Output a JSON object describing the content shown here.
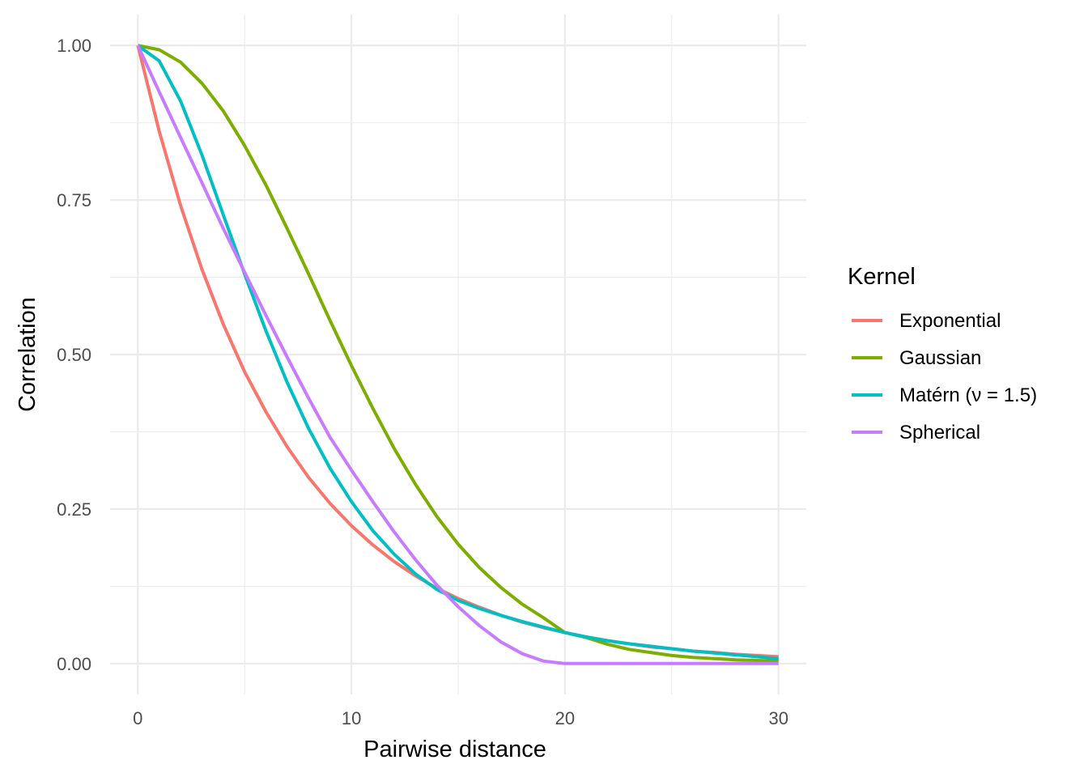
{
  "chart_data": {
    "type": "line",
    "xlabel": "Pairwise distance",
    "ylabel": "Correlation",
    "xlim": [
      -1.3,
      31.3
    ],
    "ylim": [
      -0.05,
      1.05
    ],
    "x_ticks": [
      0,
      10,
      20,
      30
    ],
    "x_tick_labels": [
      "0",
      "10",
      "20",
      "30"
    ],
    "y_ticks": [
      0,
      0.25,
      0.5,
      0.75,
      1
    ],
    "y_tick_labels": [
      "0.00",
      "0.25",
      "0.50",
      "0.75",
      "1.00"
    ],
    "grid": true,
    "legend": {
      "title": "Kernel",
      "position": "right"
    },
    "series": [
      {
        "name": "Exponential",
        "color": "#F8766D",
        "x": [
          0,
          1,
          2,
          3,
          4,
          5,
          6,
          7,
          8,
          9,
          10,
          11,
          12,
          13,
          14,
          15,
          16,
          17,
          18,
          19,
          20,
          21,
          22,
          23,
          24,
          25,
          26,
          27,
          28,
          29,
          30
        ],
        "y": [
          1.0,
          0.861,
          0.741,
          0.638,
          0.549,
          0.472,
          0.407,
          0.35,
          0.301,
          0.259,
          0.223,
          0.192,
          0.165,
          0.142,
          0.122,
          0.105,
          0.091,
          0.078,
          0.067,
          0.058,
          0.05,
          0.043,
          0.037,
          0.032,
          0.027,
          0.024,
          0.02,
          0.018,
          0.015,
          0.013,
          0.011
        ]
      },
      {
        "name": "Gaussian",
        "color": "#7CAE00",
        "x": [
          0,
          1,
          2,
          3,
          4,
          5,
          6,
          7,
          8,
          9,
          10,
          11,
          12,
          13,
          14,
          15,
          16,
          17,
          18,
          19,
          20,
          21,
          22,
          23,
          24,
          25,
          26,
          27,
          28,
          29,
          30
        ],
        "y": [
          1.0,
          0.993,
          0.973,
          0.939,
          0.894,
          0.838,
          0.774,
          0.703,
          0.63,
          0.555,
          0.482,
          0.413,
          0.348,
          0.29,
          0.238,
          0.193,
          0.155,
          0.123,
          0.096,
          0.074,
          0.05,
          0.042,
          0.031,
          0.023,
          0.018,
          0.013,
          0.01,
          0.008,
          0.006,
          0.005,
          0.004
        ]
      },
      {
        "name": "Matérn (ν = 1.5)",
        "color": "#00BFC4",
        "x": [
          0,
          1,
          2,
          3,
          4,
          5,
          6,
          7,
          8,
          9,
          10,
          11,
          12,
          13,
          14,
          15,
          16,
          17,
          18,
          19,
          20,
          21,
          22,
          23,
          24,
          25,
          26,
          27,
          28,
          29,
          30
        ],
        "y": [
          1.0,
          0.975,
          0.91,
          0.823,
          0.726,
          0.63,
          0.538,
          0.454,
          0.38,
          0.316,
          0.262,
          0.215,
          0.177,
          0.145,
          0.12,
          0.102,
          0.089,
          0.078,
          0.068,
          0.059,
          0.05,
          0.043,
          0.037,
          0.032,
          0.028,
          0.024,
          0.02,
          0.017,
          0.014,
          0.011,
          0.008
        ]
      },
      {
        "name": "Spherical",
        "color": "#C77CFF",
        "x": [
          0,
          1,
          2,
          3,
          4,
          5,
          6,
          7,
          8,
          9,
          10,
          11,
          12,
          13,
          14,
          15,
          16,
          17,
          18,
          19,
          20,
          21,
          22,
          23,
          24,
          25,
          26,
          27,
          28,
          29,
          30
        ],
        "y": [
          1.0,
          0.925,
          0.851,
          0.778,
          0.704,
          0.633,
          0.563,
          0.495,
          0.429,
          0.366,
          0.313,
          0.262,
          0.213,
          0.168,
          0.127,
          0.092,
          0.061,
          0.035,
          0.016,
          0.004,
          0.0,
          0.0,
          0.0,
          0.0,
          0.0,
          0.0,
          0.0,
          0.0,
          0.0,
          0.0,
          0.0
        ]
      }
    ]
  }
}
